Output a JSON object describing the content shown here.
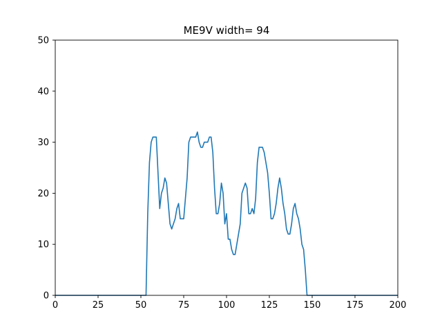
{
  "chart_data": {
    "type": "line",
    "title": "ME9V width= 94",
    "xlabel": "",
    "ylabel": "",
    "xlim": [
      0,
      200
    ],
    "ylim": [
      0,
      50
    ],
    "xticks": [
      "0",
      "25",
      "50",
      "75",
      "100",
      "125",
      "150",
      "175",
      "200"
    ],
    "yticks": [
      "0",
      "10",
      "20",
      "30",
      "40",
      "50"
    ],
    "grid": false,
    "line_color": "#1f77b4",
    "series": [
      {
        "x": [
          0,
          53,
          54,
          55,
          56,
          57,
          58,
          59,
          60,
          61,
          62,
          63,
          64,
          65,
          66,
          67,
          68,
          69,
          70,
          71,
          72,
          73,
          74,
          75,
          76,
          77,
          78,
          79,
          80,
          81,
          82,
          83,
          84,
          85,
          86,
          87,
          88,
          89,
          90,
          91,
          92,
          93,
          94,
          95,
          96,
          97,
          98,
          99,
          100,
          101,
          102,
          103,
          104,
          105,
          106,
          107,
          108,
          109,
          110,
          111,
          112,
          113,
          114,
          115,
          116,
          117,
          118,
          119,
          120,
          121,
          122,
          123,
          124,
          125,
          126,
          127,
          128,
          129,
          130,
          131,
          132,
          133,
          134,
          135,
          136,
          137,
          138,
          139,
          140,
          141,
          142,
          143,
          144,
          145,
          146,
          147,
          200
        ],
        "y": [
          0,
          0,
          16,
          26,
          30,
          31,
          31,
          31,
          24,
          17,
          20,
          21,
          23,
          22,
          18,
          14,
          13,
          14,
          15,
          17,
          18,
          15,
          15,
          15,
          19,
          23,
          30,
          31,
          31,
          31,
          31,
          32,
          30,
          29,
          29,
          30,
          30,
          30,
          31,
          31,
          28,
          21,
          16,
          16,
          18,
          22,
          20,
          14,
          16,
          11,
          11,
          9,
          8,
          8,
          10,
          12,
          14,
          20,
          21,
          22,
          21,
          16,
          16,
          17,
          16,
          19,
          26,
          29,
          29,
          29,
          28,
          26,
          24,
          20,
          15,
          15,
          16,
          18,
          21,
          23,
          21,
          18,
          16,
          13,
          12,
          12,
          14,
          17,
          18,
          16,
          15,
          13,
          10,
          9,
          5,
          0,
          0
        ]
      }
    ]
  }
}
